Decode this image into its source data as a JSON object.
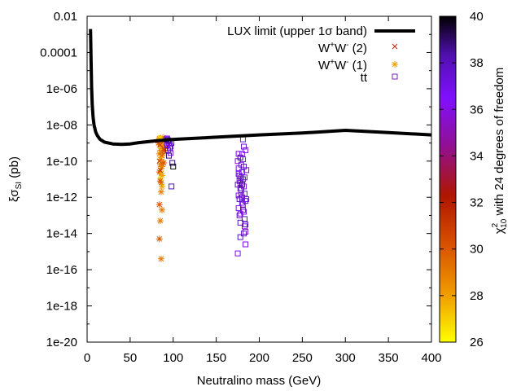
{
  "chart_data": {
    "type": "scatter",
    "xlabel": "Neutralino mass (GeV)",
    "ylabel_main": "ξσ",
    "ylabel_sub": "SI",
    "ylabel_unit": " (pb)",
    "xlim": [
      0,
      400
    ],
    "ylim_log10": [
      -20,
      -2
    ],
    "y_scale": "log",
    "x_ticks": [
      0,
      50,
      100,
      150,
      200,
      250,
      300,
      350,
      400
    ],
    "x_tick_labels": [
      "0",
      "50",
      "100",
      "150",
      "200",
      "250",
      "300",
      "350",
      "400"
    ],
    "y_ticks_log10": [
      -2,
      -4,
      -6,
      -8,
      -10,
      -12,
      -14,
      -16,
      -18,
      -20
    ],
    "y_tick_labels": [
      "0.01",
      "0.0001",
      "1e-06",
      "1e-08",
      "1e-10",
      "1e-12",
      "1e-14",
      "1e-16",
      "1e-18",
      "1e-20"
    ],
    "colorbar": {
      "range": [
        26,
        40
      ],
      "ticks": [
        26,
        28,
        30,
        32,
        34,
        36,
        38,
        40
      ],
      "tick_labels": [
        "26",
        "28",
        "30",
        "32",
        "34",
        "36",
        "38",
        "40"
      ],
      "label_prefix": "χ",
      "label_sup": "2",
      "label_sub": "10",
      "label_suffix": " with 24 degrees of freedom",
      "colors": [
        "#ffff00",
        "#f0a000",
        "#d85000",
        "#b01500",
        "#901090",
        "#8010ff",
        "#5010b0",
        "#000000"
      ]
    },
    "legend": {
      "position": "top-right",
      "entries": [
        {
          "label": "LUX limit (upper 1σ band)",
          "marker": "line"
        },
        {
          "label_main": "W",
          "label_sup1": "+",
          "label_mid": "W",
          "label_sup2": "-",
          "label_end": " (2)",
          "marker": "x",
          "color": "#c02000"
        },
        {
          "label_main": "W",
          "label_sup1": "+",
          "label_mid": "W",
          "label_sup2": "-",
          "label_end": " (1)",
          "marker": "star",
          "color": "#f0a000"
        },
        {
          "label": "tt",
          "marker": "square",
          "color": "#8020c0"
        }
      ]
    },
    "series": [
      {
        "name": "LUX limit (upper 1σ band)",
        "type": "line",
        "x": [
          4,
          4.6,
          5.2,
          6,
          7,
          8,
          10,
          12,
          15,
          20,
          25,
          30,
          40,
          50,
          60,
          80,
          100,
          150,
          200,
          250,
          300,
          350,
          400
        ],
        "y_log10": [
          -2.7,
          -4.5,
          -5.9,
          -6.9,
          -7.6,
          -8.0,
          -8.4,
          -8.6,
          -8.8,
          -8.95,
          -9.0,
          -9.05,
          -9.08,
          -9.05,
          -8.98,
          -8.88,
          -8.8,
          -8.68,
          -8.55,
          -8.45,
          -8.3,
          -8.42,
          -8.55
        ]
      },
      {
        "name": "W+W- (1)",
        "marker": "star",
        "points": [
          [
            84,
            -8.8,
            28
          ],
          [
            85,
            -9.0,
            29
          ],
          [
            86,
            -8.9,
            27
          ],
          [
            87,
            -9.2,
            28
          ],
          [
            88,
            -8.8,
            30
          ],
          [
            85,
            -9.4,
            28
          ],
          [
            84,
            -9.6,
            29
          ],
          [
            86,
            -9.8,
            27
          ],
          [
            87,
            -10.0,
            28
          ],
          [
            85,
            -10.2,
            29
          ],
          [
            86,
            -10.4,
            28
          ],
          [
            84,
            -10.6,
            30
          ],
          [
            87,
            -10.8,
            28
          ],
          [
            85,
            -11.0,
            27
          ],
          [
            86,
            -11.2,
            29
          ],
          [
            84,
            -9.1,
            28
          ],
          [
            88,
            -9.3,
            29
          ],
          [
            89,
            -8.9,
            28
          ],
          [
            83,
            -9.0,
            30
          ],
          [
            86,
            -9.5,
            27
          ],
          [
            85,
            -9.9,
            28
          ],
          [
            87,
            -10.3,
            29
          ],
          [
            86,
            -10.7,
            28
          ],
          [
            85,
            -11.1,
            30
          ],
          [
            87,
            -11.4,
            28
          ],
          [
            86,
            -11.7,
            29
          ],
          [
            84,
            -12.4,
            30
          ],
          [
            85,
            -13.3,
            29
          ],
          [
            84,
            -14.3,
            30
          ],
          [
            86,
            -15.4,
            29
          ],
          [
            90,
            -8.9,
            31
          ],
          [
            91,
            -9.2,
            30
          ],
          [
            88,
            -9.6,
            29
          ],
          [
            89,
            -10.1,
            30
          ],
          [
            90,
            -9.4,
            31
          ],
          [
            87,
            -12.7,
            29
          ],
          [
            86,
            -8.85,
            28
          ],
          [
            88,
            -8.7,
            29
          ],
          [
            84,
            -8.75,
            28
          ],
          [
            85,
            -8.72,
            27
          ]
        ]
      },
      {
        "name": "W+W- (2)",
        "marker": "x",
        "points": [
          [
            85,
            -9.1,
            31
          ],
          [
            86,
            -9.5,
            30
          ],
          [
            84,
            -10.0,
            31
          ],
          [
            87,
            -9.7,
            30
          ],
          [
            85,
            -10.5,
            31
          ],
          [
            86,
            -8.9,
            30
          ]
        ]
      },
      {
        "name": "tt",
        "marker": "square",
        "points": [
          [
            92,
            -8.8,
            37
          ],
          [
            93,
            -9.1,
            38
          ],
          [
            94,
            -9.4,
            37
          ],
          [
            95,
            -9.7,
            39
          ],
          [
            96,
            -8.9,
            38
          ],
          [
            97,
            -9.2,
            37
          ],
          [
            98,
            -9.0,
            38
          ],
          [
            99,
            -10.1,
            39
          ],
          [
            100,
            -10.3,
            40
          ],
          [
            98,
            -11.4,
            38
          ],
          [
            93,
            -8.75,
            36
          ],
          [
            95,
            -9.0,
            37
          ],
          [
            94,
            -8.85,
            39
          ],
          [
            96,
            -9.3,
            38
          ],
          [
            97,
            -9.55,
            37
          ],
          [
            175,
            -10.0,
            36
          ],
          [
            176,
            -10.4,
            37
          ],
          [
            177,
            -10.8,
            38
          ],
          [
            178,
            -11.2,
            36
          ],
          [
            179,
            -11.6,
            37
          ],
          [
            180,
            -12.0,
            38
          ],
          [
            181,
            -12.4,
            36
          ],
          [
            182,
            -12.8,
            37
          ],
          [
            183,
            -13.2,
            38
          ],
          [
            178,
            -9.8,
            39
          ],
          [
            179,
            -10.2,
            36
          ],
          [
            180,
            -10.6,
            37
          ],
          [
            181,
            -11.0,
            38
          ],
          [
            182,
            -11.4,
            36
          ],
          [
            183,
            -11.8,
            37
          ],
          [
            184,
            -12.2,
            38
          ],
          [
            176,
            -12.6,
            36
          ],
          [
            177,
            -13.0,
            37
          ],
          [
            178,
            -13.4,
            38
          ],
          [
            180,
            -9.6,
            36
          ],
          [
            181,
            -9.9,
            37
          ],
          [
            182,
            -10.3,
            38
          ],
          [
            176,
            -10.7,
            36
          ],
          [
            177,
            -11.1,
            37
          ],
          [
            178,
            -11.5,
            38
          ],
          [
            179,
            -11.9,
            36
          ],
          [
            180,
            -12.3,
            37
          ],
          [
            181,
            -12.7,
            38
          ],
          [
            183,
            -13.6,
            36
          ],
          [
            184,
            -13.9,
            37
          ],
          [
            178,
            -14.2,
            38
          ],
          [
            175,
            -15.1,
            36
          ],
          [
            181,
            -8.8,
            37
          ],
          [
            182,
            -9.2,
            38
          ],
          [
            184,
            -9.4,
            36
          ],
          [
            185,
            -10.5,
            37
          ],
          [
            175,
            -11.3,
            38
          ],
          [
            176,
            -11.9,
            36
          ],
          [
            184,
            -13.5,
            38
          ],
          [
            185,
            -12.1,
            37
          ],
          [
            179,
            -10.9,
            38
          ],
          [
            180,
            -11.3,
            39
          ],
          [
            177,
            -12.1,
            38
          ],
          [
            183,
            -10.9,
            37
          ],
          [
            178,
            -12.9,
            36
          ],
          [
            182,
            -14.0,
            38
          ],
          [
            176,
            -9.6,
            37
          ],
          [
            184,
            -14.6,
            37
          ]
        ]
      }
    ]
  }
}
